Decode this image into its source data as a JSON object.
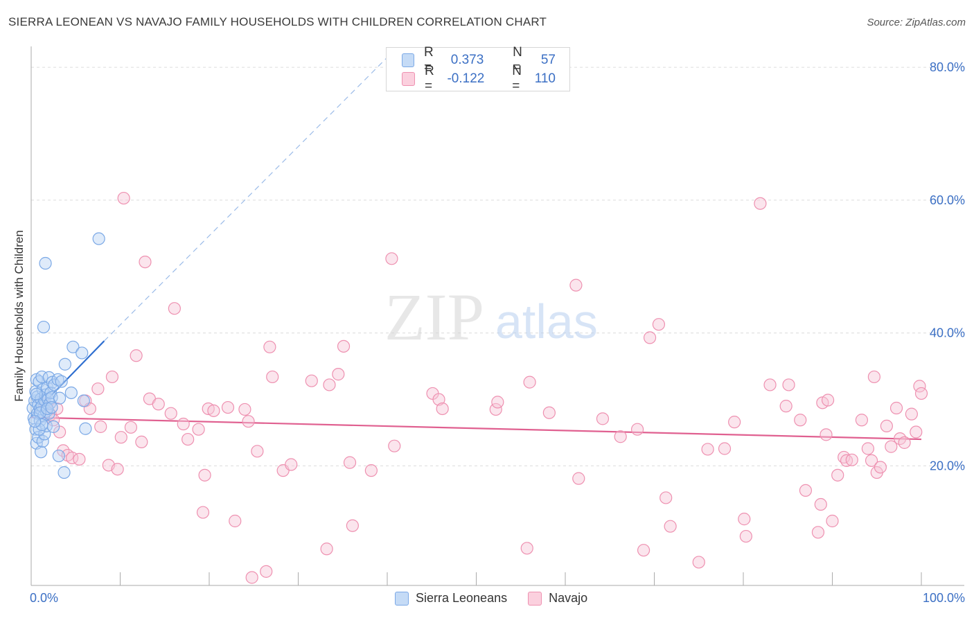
{
  "header": {
    "title": "SIERRA LEONEAN VS NAVAJO FAMILY HOUSEHOLDS WITH CHILDREN CORRELATION CHART",
    "source": "Source: ZipAtlas.com"
  },
  "watermark": {
    "zip": "ZIP",
    "atlas": "atlas"
  },
  "legend_box": {
    "rows": [
      {
        "r_label": "R =",
        "r_value": "0.373",
        "n_label": "N =",
        "n_value": "57",
        "color": "#a9c8f0"
      },
      {
        "r_label": "R =",
        "r_value": "-0.122",
        "n_label": "N =",
        "n_value": "110",
        "color": "#f5b8cc"
      }
    ]
  },
  "bottom_legend": {
    "items": [
      {
        "label": "Sierra Leoneans",
        "color": "#a9c8f0"
      },
      {
        "label": "Navajo",
        "color": "#f5b8cc"
      }
    ]
  },
  "chart_data": {
    "type": "scatter",
    "title": "SIERRA LEONEAN VS NAVAJO FAMILY HOUSEHOLDS WITH CHILDREN CORRELATION CHART",
    "xlabel": "",
    "ylabel": "Family Households with Children",
    "xlim": [
      0,
      100
    ],
    "ylim": [
      2,
      82
    ],
    "x_tick_labels": [
      {
        "value": 0,
        "label": "0.0%"
      },
      {
        "value": 100,
        "label": "100.0%"
      }
    ],
    "y_tick_labels": [
      {
        "value": 20,
        "label": "20.0%"
      },
      {
        "value": 40,
        "label": "40.0%"
      },
      {
        "value": 60,
        "label": "60.0%"
      },
      {
        "value": 80,
        "label": "80.0%"
      }
    ],
    "x_minor_ticks": [
      10,
      20,
      30,
      40,
      50,
      60,
      70,
      80,
      90,
      100
    ],
    "grid": true,
    "series": [
      {
        "name": "Sierra Leoneans",
        "color": "#7aa8e6",
        "trend": {
          "x0": 0,
          "y0": 27.5,
          "x1": 8.2,
          "y1": 38.8,
          "dash_to_x": 40,
          "dash_to_y": 81.5,
          "color": "#2f6fd0"
        },
        "points": [
          [
            0.2,
            28.7
          ],
          [
            0.3,
            27.2
          ],
          [
            0.4,
            29.8
          ],
          [
            0.5,
            31.2
          ],
          [
            0.5,
            25.5
          ],
          [
            0.6,
            33.0
          ],
          [
            0.6,
            23.4
          ],
          [
            0.7,
            27.9
          ],
          [
            0.7,
            30.4
          ],
          [
            0.8,
            24.3
          ],
          [
            0.8,
            29.2
          ],
          [
            0.9,
            32.7
          ],
          [
            1.0,
            26.8
          ],
          [
            1.0,
            28.6
          ],
          [
            1.1,
            22.1
          ],
          [
            1.1,
            30.1
          ],
          [
            1.2,
            29.0
          ],
          [
            1.2,
            33.4
          ],
          [
            1.3,
            23.7
          ],
          [
            1.3,
            31.5
          ],
          [
            1.4,
            27.5
          ],
          [
            1.5,
            29.9
          ],
          [
            1.5,
            24.8
          ],
          [
            1.6,
            30.7
          ],
          [
            1.7,
            28.2
          ],
          [
            1.7,
            26.0
          ],
          [
            1.8,
            31.8
          ],
          [
            1.9,
            30.0
          ],
          [
            2.0,
            27.9
          ],
          [
            2.0,
            33.3
          ],
          [
            2.1,
            29.4
          ],
          [
            2.2,
            31.0
          ],
          [
            2.3,
            30.3
          ],
          [
            2.4,
            32.6
          ],
          [
            2.5,
            25.9
          ],
          [
            2.6,
            32.2
          ],
          [
            3.0,
            33.0
          ],
          [
            3.1,
            21.5
          ],
          [
            3.2,
            30.2
          ],
          [
            3.4,
            32.7
          ],
          [
            3.7,
            19.0
          ],
          [
            3.8,
            35.3
          ],
          [
            4.5,
            31.0
          ],
          [
            4.7,
            37.9
          ],
          [
            5.7,
            37.0
          ],
          [
            5.9,
            29.8
          ],
          [
            6.1,
            25.6
          ],
          [
            7.6,
            54.2
          ],
          [
            1.4,
            40.9
          ],
          [
            1.6,
            50.5
          ],
          [
            0.9,
            25.5
          ],
          [
            1.0,
            28.0
          ],
          [
            0.6,
            30.8
          ],
          [
            1.8,
            28.6
          ],
          [
            1.2,
            26.2
          ],
          [
            2.3,
            28.8
          ],
          [
            0.4,
            26.7
          ]
        ]
      },
      {
        "name": "Navajo",
        "color": "#ee90b0",
        "trend": {
          "x0": 0,
          "y0": 27.3,
          "x1": 100,
          "y1": 24.0,
          "color": "#e06090"
        },
        "points": [
          [
            1.5,
            29.3
          ],
          [
            1.8,
            28.8
          ],
          [
            2.2,
            27.7
          ],
          [
            2.5,
            26.9
          ],
          [
            2.9,
            28.6
          ],
          [
            3.2,
            25.1
          ],
          [
            3.6,
            22.3
          ],
          [
            4.1,
            21.6
          ],
          [
            4.6,
            21.2
          ],
          [
            5.4,
            21.0
          ],
          [
            6.1,
            29.8
          ],
          [
            6.6,
            28.6
          ],
          [
            7.5,
            31.6
          ],
          [
            7.8,
            25.9
          ],
          [
            8.7,
            20.1
          ],
          [
            9.1,
            33.4
          ],
          [
            9.7,
            19.5
          ],
          [
            10.1,
            24.3
          ],
          [
            10.4,
            60.3
          ],
          [
            11.2,
            25.8
          ],
          [
            11.8,
            36.6
          ],
          [
            12.4,
            23.6
          ],
          [
            12.8,
            50.7
          ],
          [
            13.3,
            30.1
          ],
          [
            14.3,
            29.3
          ],
          [
            15.7,
            27.9
          ],
          [
            16.1,
            43.7
          ],
          [
            17.1,
            26.3
          ],
          [
            17.6,
            24.0
          ],
          [
            18.8,
            25.5
          ],
          [
            19.3,
            13.0
          ],
          [
            19.5,
            18.6
          ],
          [
            19.9,
            28.6
          ],
          [
            20.5,
            28.3
          ],
          [
            22.1,
            28.8
          ],
          [
            22.9,
            11.7
          ],
          [
            24.0,
            28.5
          ],
          [
            24.4,
            26.7
          ],
          [
            24.8,
            3.2
          ],
          [
            25.4,
            22.2
          ],
          [
            26.4,
            4.1
          ],
          [
            26.8,
            37.9
          ],
          [
            27.1,
            33.4
          ],
          [
            28.3,
            19.3
          ],
          [
            29.2,
            20.2
          ],
          [
            31.5,
            32.8
          ],
          [
            33.2,
            7.5
          ],
          [
            33.5,
            32.2
          ],
          [
            34.5,
            33.8
          ],
          [
            35.1,
            38.0
          ],
          [
            35.8,
            20.5
          ],
          [
            36.1,
            11.0
          ],
          [
            38.2,
            19.3
          ],
          [
            40.5,
            51.2
          ],
          [
            40.8,
            23.0
          ],
          [
            45.1,
            30.9
          ],
          [
            45.8,
            30.0
          ],
          [
            46.2,
            28.6
          ],
          [
            52.2,
            28.5
          ],
          [
            52.4,
            29.6
          ],
          [
            55.7,
            7.6
          ],
          [
            56.0,
            32.6
          ],
          [
            61.2,
            47.2
          ],
          [
            61.5,
            18.1
          ],
          [
            64.2,
            27.1
          ],
          [
            66.2,
            24.4
          ],
          [
            68.1,
            25.5
          ],
          [
            68.8,
            7.3
          ],
          [
            69.5,
            39.3
          ],
          [
            70.5,
            41.3
          ],
          [
            71.3,
            15.2
          ],
          [
            71.8,
            10.9
          ],
          [
            76.0,
            22.5
          ],
          [
            77.9,
            22.6
          ],
          [
            79.0,
            26.6
          ],
          [
            80.1,
            12.0
          ],
          [
            80.3,
            9.4
          ],
          [
            81.9,
            59.5
          ],
          [
            83.0,
            32.2
          ],
          [
            84.8,
            29.0
          ],
          [
            85.1,
            32.2
          ],
          [
            86.4,
            26.9
          ],
          [
            87.0,
            16.3
          ],
          [
            88.4,
            10.0
          ],
          [
            88.7,
            14.2
          ],
          [
            88.9,
            29.5
          ],
          [
            89.3,
            24.7
          ],
          [
            89.5,
            29.9
          ],
          [
            90.0,
            11.7
          ],
          [
            90.6,
            18.6
          ],
          [
            91.3,
            21.3
          ],
          [
            91.6,
            20.8
          ],
          [
            92.2,
            20.9
          ],
          [
            93.3,
            26.9
          ],
          [
            94.0,
            22.6
          ],
          [
            94.4,
            20.8
          ],
          [
            94.7,
            33.4
          ],
          [
            95.0,
            19.0
          ],
          [
            95.4,
            19.8
          ],
          [
            96.1,
            26.0
          ],
          [
            96.6,
            22.9
          ],
          [
            97.2,
            28.7
          ],
          [
            97.6,
            24.1
          ],
          [
            98.1,
            23.5
          ],
          [
            98.9,
            27.8
          ],
          [
            99.4,
            25.1
          ],
          [
            99.8,
            32.0
          ],
          [
            100.0,
            30.9
          ],
          [
            75.0,
            5.5
          ],
          [
            58.2,
            28.0
          ]
        ]
      }
    ]
  }
}
